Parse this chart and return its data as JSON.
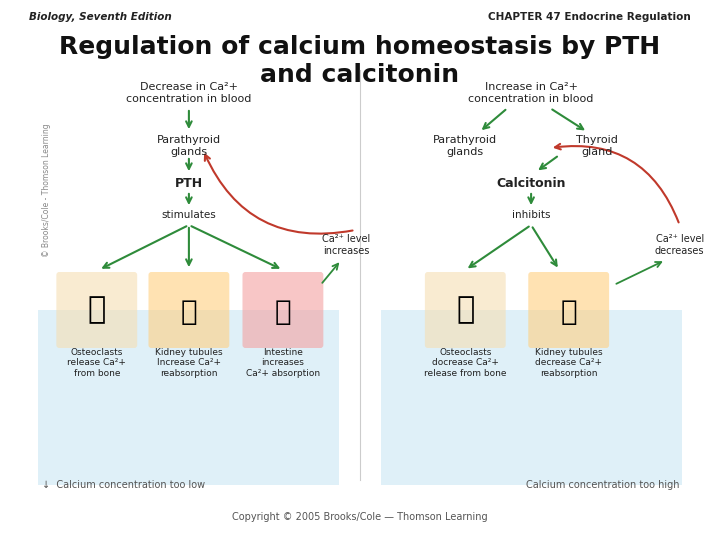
{
  "title": "Regulation of calcium homeostasis by PTH\nand calcitonin",
  "header_left": "Biology, Seventh Edition",
  "header_right": "CHAPTER 47 Endocrine Regulation",
  "footer_center": "Copyright © 2005 Brooks/Cole — Thomson Learning",
  "watermark": "© Brooks/Cole - Thomson Learning",
  "left_panel": {
    "trigger": "Decrease in Ca²+\nconcentration in blood",
    "gland": "Parathyroid\nglands",
    "hormone": "PTH",
    "action": "stimulates",
    "targets": [
      "Osteoclasts\nrelease Ca²+\nfrom bone",
      "Kidney tubules\nIncrease Ca²+\nreabsorption",
      "Intestine\nincreases\nCa²+ absorption"
    ],
    "side_note": "Ca²+ level\nincreases",
    "footer": "↓  Calcium concentration too low",
    "feedback_label": ""
  },
  "right_panel": {
    "trigger": "Increase in Ca²+\nconcentration in blood",
    "gland1": "Parathyroid\nglands",
    "gland2": "Thyroid\ngland",
    "hormone": "Calcitonin",
    "action": "inhibits",
    "targets": [
      "Osteoclasts\ndocrease Ca²+\nrelease from bone",
      "Kidney tubules\ndecrease Ca²+\nreabsorption"
    ],
    "side_note": "Ca²+ level\ndecreases",
    "footer": "Calcium concentration too high",
    "feedback_label": ""
  },
  "bg_color": "#ffffff",
  "panel_bg": "#dff0f8",
  "arrow_green": "#2e8b3a",
  "arrow_red": "#c0392b",
  "text_dark": "#222222",
  "text_gray": "#555555",
  "header_color": "#111111",
  "title_color": "#111111"
}
